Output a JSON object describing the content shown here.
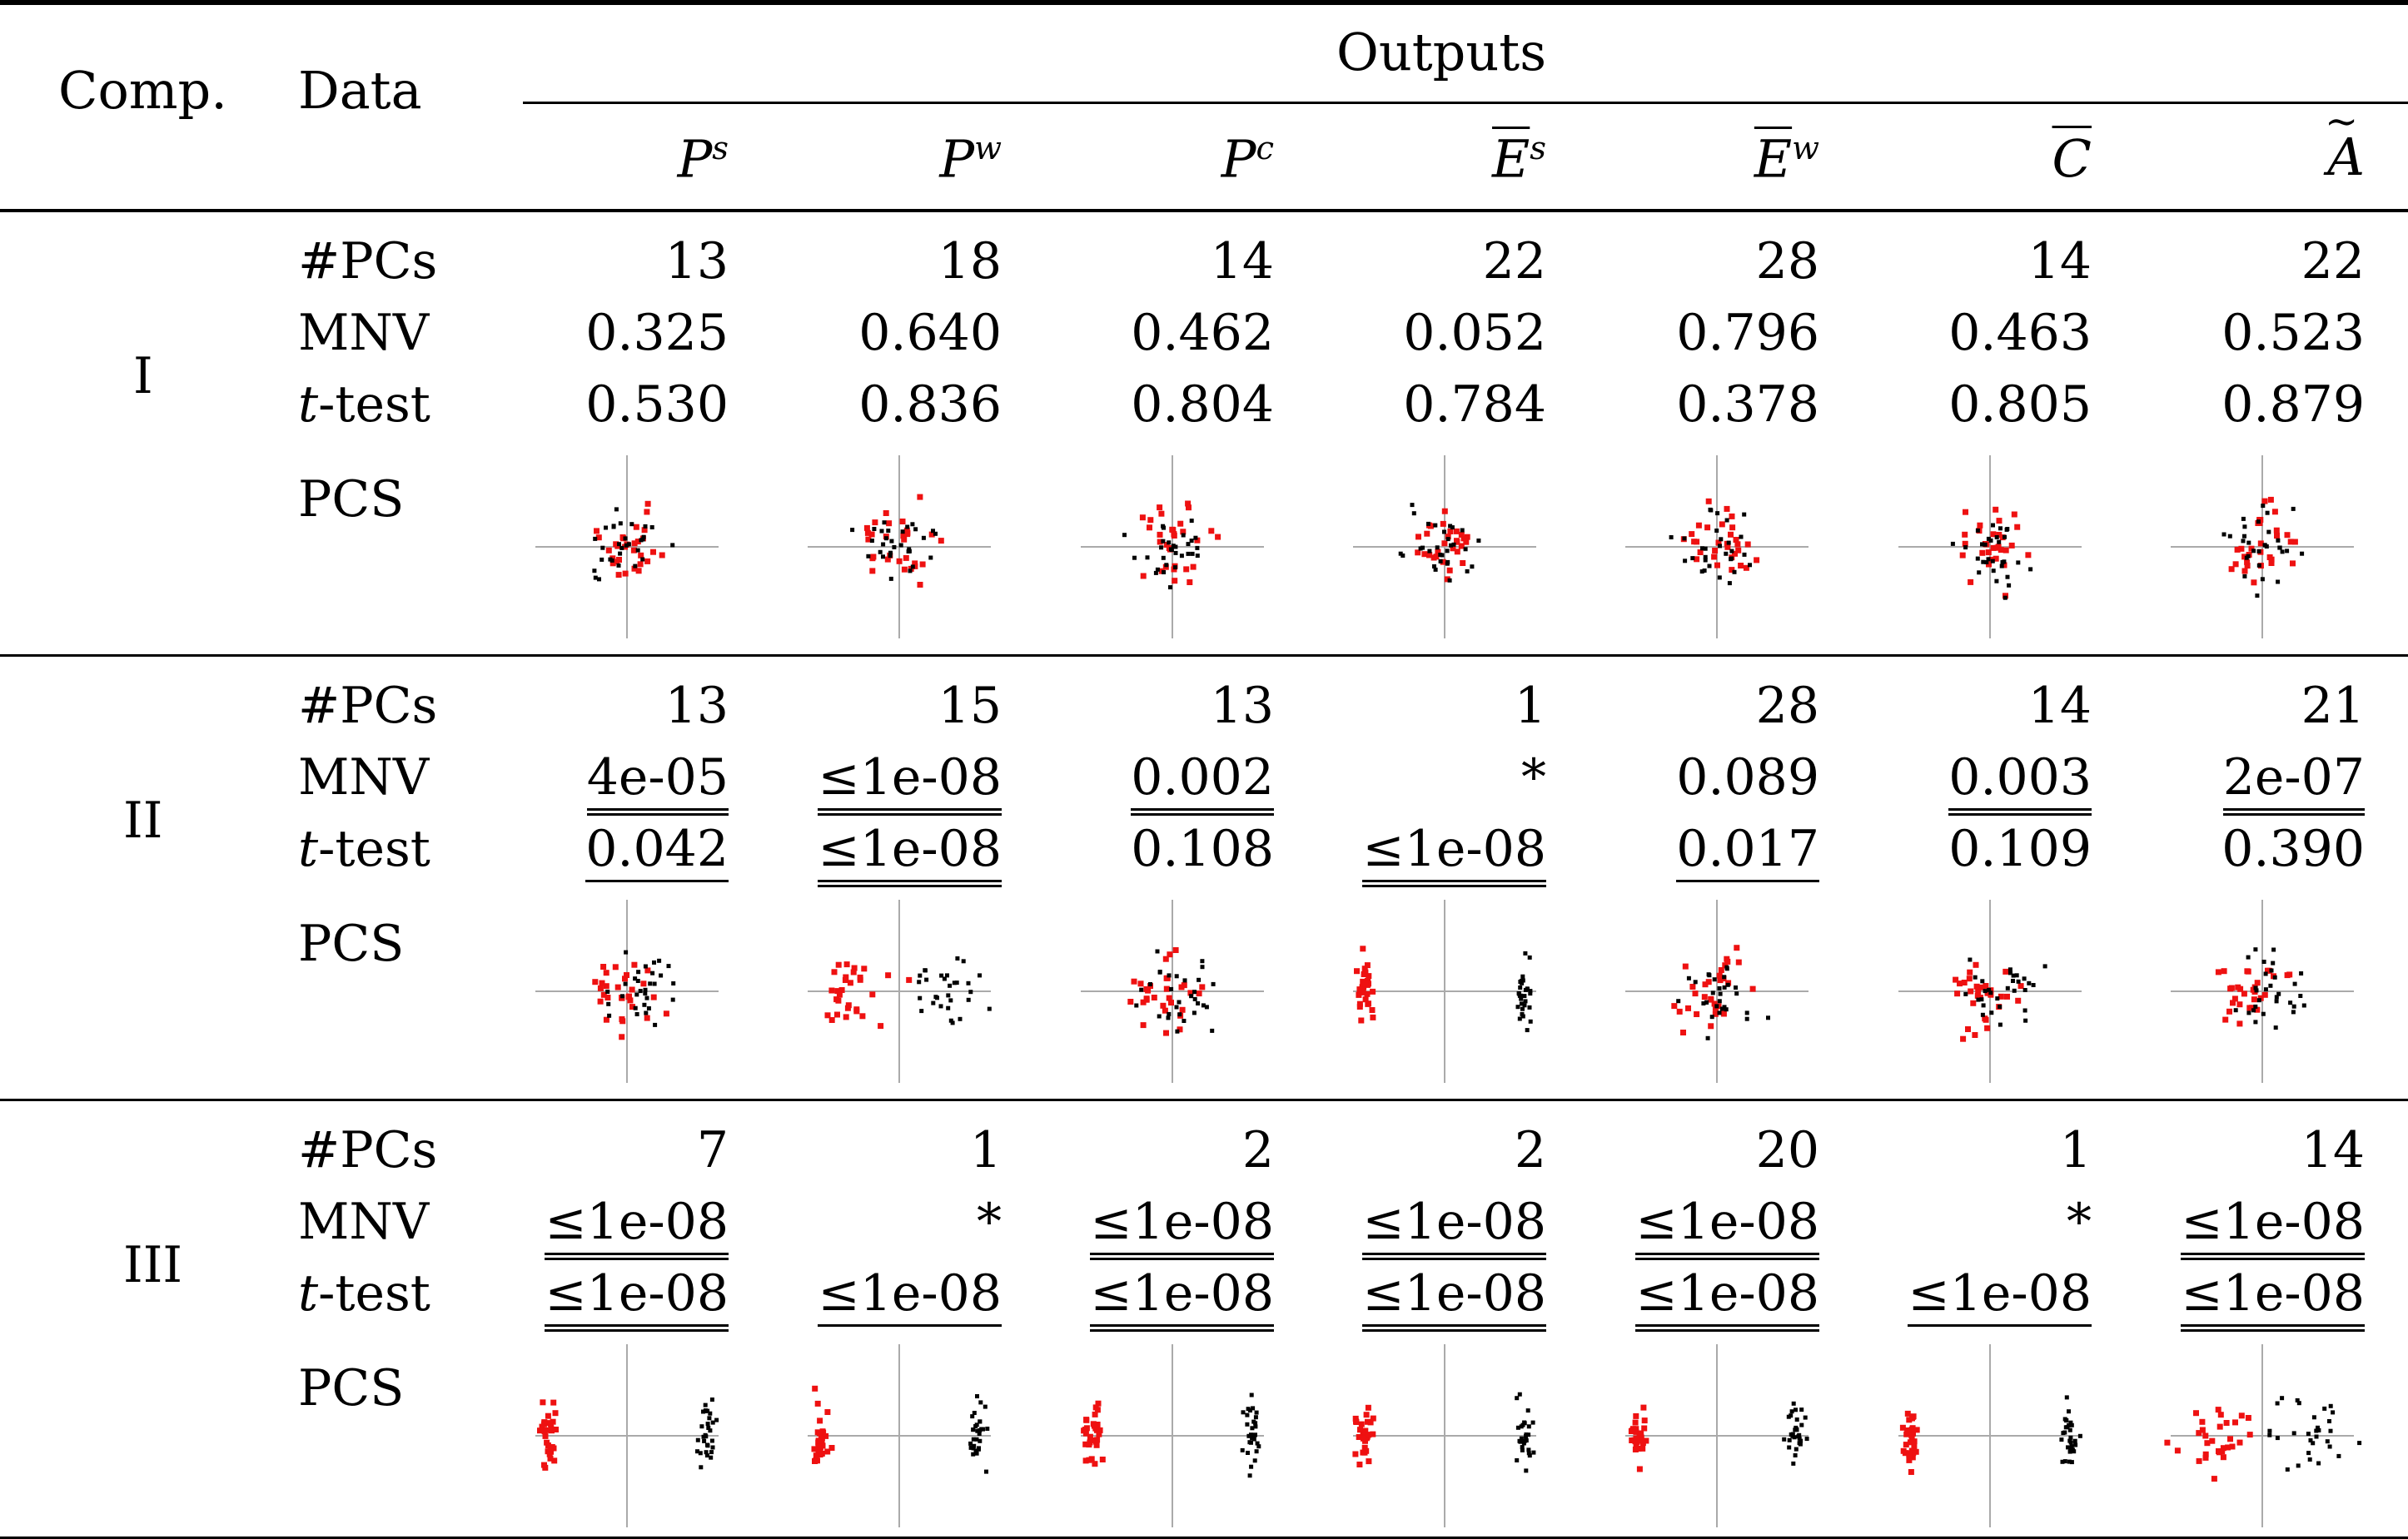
{
  "header": {
    "comp": "Comp.",
    "data": "Data",
    "outputs": "Outputs",
    "columns": [
      {
        "base": "P",
        "sup": "s",
        "bar": false,
        "tilde": false
      },
      {
        "base": "P",
        "sup": "w",
        "bar": false,
        "tilde": false
      },
      {
        "base": "P",
        "sup": "c",
        "bar": false,
        "tilde": false
      },
      {
        "base": "E",
        "sup": "s",
        "bar": true,
        "tilde": false
      },
      {
        "base": "E",
        "sup": "w",
        "bar": true,
        "tilde": false
      },
      {
        "base": "C",
        "sup": "",
        "bar": true,
        "tilde": false
      },
      {
        "base": "A",
        "sup": "",
        "bar": false,
        "tilde": true
      }
    ]
  },
  "row_labels": {
    "pcs_count": "#PCs",
    "mnv": "MNV",
    "t_prefix": "t",
    "t_suffix": "-test",
    "pcs_plot": "PCS"
  },
  "groups": [
    {
      "comp": "I",
      "pcs": [
        "13",
        "18",
        "14",
        "22",
        "28",
        "14",
        "22"
      ],
      "mnv": [
        {
          "v": "0.325",
          "u": 0
        },
        {
          "v": "0.640",
          "u": 0
        },
        {
          "v": "0.462",
          "u": 0
        },
        {
          "v": "0.052",
          "u": 0
        },
        {
          "v": "0.796",
          "u": 0
        },
        {
          "v": "0.463",
          "u": 0
        },
        {
          "v": "0.523",
          "u": 0
        }
      ],
      "ttest": [
        {
          "v": "0.530",
          "u": 0
        },
        {
          "v": "0.836",
          "u": 0
        },
        {
          "v": "0.804",
          "u": 0
        },
        {
          "v": "0.784",
          "u": 0
        },
        {
          "v": "0.378",
          "u": 0
        },
        {
          "v": "0.805",
          "u": 0
        },
        {
          "v": "0.879",
          "u": 0
        }
      ],
      "separation": [
        0,
        0,
        0,
        0,
        0,
        0,
        0
      ]
    },
    {
      "comp": "II",
      "pcs": [
        "13",
        "15",
        "13",
        "1",
        "28",
        "14",
        "21"
      ],
      "mnv": [
        {
          "v": "4e-05",
          "u": 2
        },
        {
          "v": "≤1e-08",
          "u": 2
        },
        {
          "v": "0.002",
          "u": 2
        },
        {
          "v": "*",
          "u": 0
        },
        {
          "v": "0.089",
          "u": 0
        },
        {
          "v": "0.003",
          "u": 2
        },
        {
          "v": "2e-07",
          "u": 2
        }
      ],
      "ttest": [
        {
          "v": "0.042",
          "u": 1
        },
        {
          "v": "≤1e-08",
          "u": 2
        },
        {
          "v": "0.108",
          "u": 0
        },
        {
          "v": "≤1e-08",
          "u": 2
        },
        {
          "v": "0.017",
          "u": 1
        },
        {
          "v": "0.109",
          "u": 0
        },
        {
          "v": "0.390",
          "u": 0
        }
      ],
      "separation": [
        0.15,
        0.55,
        0.1,
        1,
        0.05,
        0.1,
        0.1
      ]
    },
    {
      "comp": "III",
      "pcs": [
        "7",
        "1",
        "2",
        "2",
        "20",
        "1",
        "14"
      ],
      "mnv": [
        {
          "v": "≤1e-08",
          "u": 2
        },
        {
          "v": "*",
          "u": 0
        },
        {
          "v": "≤1e-08",
          "u": 2
        },
        {
          "v": "≤1e-08",
          "u": 2
        },
        {
          "v": "≤1e-08",
          "u": 2
        },
        {
          "v": "*",
          "u": 0
        },
        {
          "v": "≤1e-08",
          "u": 2
        }
      ],
      "ttest": [
        {
          "v": "≤1e-08",
          "u": 2
        },
        {
          "v": "≤1e-08",
          "u": 1
        },
        {
          "v": "≤1e-08",
          "u": 2
        },
        {
          "v": "≤1e-08",
          "u": 2
        },
        {
          "v": "≤1e-08",
          "u": 2
        },
        {
          "v": "≤1e-08",
          "u": 1
        },
        {
          "v": "≤1e-08",
          "u": 2
        }
      ],
      "separation": [
        1,
        1,
        1,
        1,
        1,
        1,
        0.6
      ]
    }
  ],
  "colors": {
    "group_a": "#ee1111",
    "group_b": "#000000",
    "axis": "#aaaaaa"
  }
}
